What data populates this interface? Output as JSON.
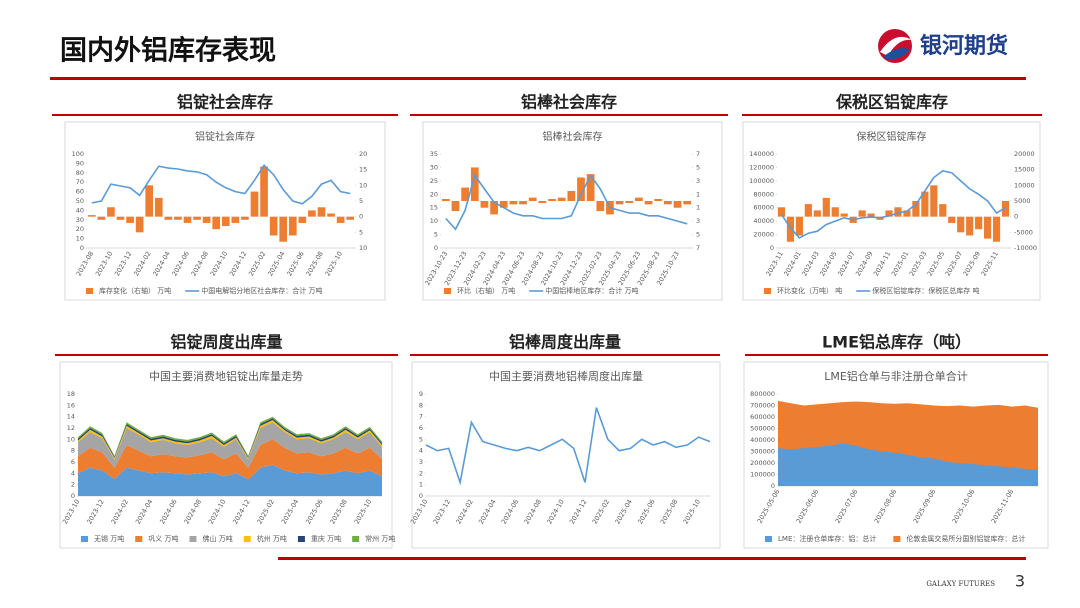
{
  "header": {
    "title": "国内外铝库存表现",
    "logo": "银河期货"
  },
  "footer": {
    "brand": "GALAXY FUTURES",
    "page": "3"
  },
  "chart_data": [
    {
      "type": "combo",
      "heading": "铝锭社会库存",
      "title": "铝锭社会库存",
      "categories": [
        "2023-08",
        null,
        "2023-10",
        null,
        "2023-12",
        null,
        "2024-02",
        null,
        "2024-04",
        null,
        "2024-06",
        null,
        "2024-08",
        null,
        "2024-10",
        null,
        "2024-12",
        null,
        "2025-02",
        null,
        "2025-04",
        null,
        "2025-06",
        null,
        "2025-08",
        null,
        "2025-10",
        null
      ],
      "series": [
        {
          "name": "库存变化（右轴） 万吨",
          "type": "bar",
          "axis": "y2",
          "color": "#ed7d31",
          "values": [
            0.5,
            -1,
            3,
            -1,
            -2,
            -5,
            10,
            6,
            -1,
            -1,
            -2,
            -1,
            -2,
            -4,
            -3,
            -2,
            -1,
            8,
            16,
            -6,
            -8,
            -6,
            -2,
            2,
            3,
            1,
            -2,
            -1
          ]
        },
        {
          "name": "中国电解铝分地区社会库存：合计 万吨",
          "type": "line",
          "color": "#5b9bd5",
          "values": [
            48,
            50,
            68,
            66,
            64,
            56,
            72,
            87,
            85,
            84,
            82,
            81,
            78,
            70,
            64,
            60,
            58,
            72,
            88,
            78,
            62,
            50,
            47,
            55,
            68,
            72,
            60,
            58
          ]
        }
      ],
      "ylim": [
        0,
        100
      ],
      "yticks": [
        0,
        10,
        20,
        30,
        40,
        50,
        60,
        70,
        80,
        90,
        100
      ],
      "y2lim": [
        -10,
        20
      ],
      "y2ticks": [
        {
          "value": -10,
          "label": "10"
        },
        {
          "value": -5,
          "label": "5"
        },
        0,
        5,
        10,
        15,
        20
      ]
    },
    {
      "type": "combo",
      "heading": "铝棒社会库存",
      "title": "铝棒社会库存",
      "categories": [
        "2023-10-23",
        null,
        "2023-12-23",
        null,
        "2024-02-23",
        null,
        "2024-04-23",
        null,
        "2024-06-23",
        null,
        "2024-08-23",
        null,
        "2024-10-23",
        null,
        "2024-12-23",
        null,
        "2025-02-23",
        null,
        "2025-04-23",
        null,
        "2025-06-23",
        null,
        "2025-08-23",
        null,
        "2025-10-23",
        null
      ],
      "series": [
        {
          "name": "环比（右轴） 万吨",
          "type": "bar",
          "axis": "y2",
          "color": "#ed7d31",
          "values": [
            0.3,
            -1.5,
            2,
            5,
            -1,
            -2,
            -1,
            -0.5,
            -0.5,
            0.5,
            -0.3,
            0.3,
            0.5,
            1.5,
            3.5,
            4,
            -1.5,
            -2,
            -0.5,
            -0.3,
            0.5,
            -0.5,
            0.3,
            -0.5,
            -1,
            -0.5
          ]
        },
        {
          "name": "中国铝棒地区库存：合计 万吨",
          "type": "line",
          "color": "#5b9bd5",
          "values": [
            11,
            7,
            14,
            27,
            22,
            17,
            15,
            13,
            12,
            12,
            11,
            11,
            11,
            12,
            20,
            27,
            22,
            15,
            14,
            13,
            13,
            12,
            12,
            11,
            10,
            9
          ]
        }
      ],
      "ylim": [
        0,
        35
      ],
      "yticks": [
        0,
        5,
        10,
        15,
        20,
        25,
        30,
        35
      ],
      "y2lim": [
        -7,
        7
      ],
      "y2ticks": [
        {
          "value": -7,
          "label": "7"
        },
        {
          "value": -5,
          "label": "5"
        },
        {
          "value": -3,
          "label": "3"
        },
        {
          "value": -1,
          "label": "1"
        },
        1,
        3,
        5,
        7
      ]
    },
    {
      "type": "combo",
      "heading": "保税区铝锭库存",
      "title": "保税区铝锭库存",
      "categories": [
        "2023-11",
        null,
        "2024-01",
        null,
        "2024-03",
        null,
        "2024-05",
        null,
        "2024-07",
        null,
        "2024-09",
        null,
        "2024-11",
        null,
        "2025-01",
        null,
        "2025-03",
        null,
        "2025-05",
        null,
        "2025-07",
        null,
        "2025-09",
        null,
        "2025-11",
        null
      ],
      "series": [
        {
          "name": "环比变化（万吨） 吨",
          "type": "bar",
          "axis": "y2",
          "color": "#ed7d31",
          "values": [
            3000,
            -8000,
            -6000,
            4000,
            2000,
            6000,
            3000,
            1000,
            -2000,
            2000,
            1000,
            -1000,
            2000,
            3000,
            2000,
            5000,
            8000,
            10000,
            4000,
            -2000,
            -5000,
            -6000,
            -4000,
            -7000,
            -8000,
            5000
          ]
        },
        {
          "name": "保税区铝锭库存：保税区总库存 吨",
          "type": "line",
          "color": "#5b9bd5",
          "values": [
            50000,
            30000,
            15000,
            22000,
            25000,
            35000,
            40000,
            45000,
            42000,
            45000,
            46000,
            45000,
            48000,
            52000,
            55000,
            65000,
            85000,
            105000,
            115000,
            112000,
            100000,
            88000,
            80000,
            70000,
            52000,
            60000
          ]
        }
      ],
      "ylim": [
        0,
        140000
      ],
      "yticks": [
        0,
        20000,
        40000,
        60000,
        80000,
        100000,
        120000,
        140000
      ],
      "y2lim": [
        -10000,
        20000
      ],
      "y2ticks": [
        -10000,
        -5000,
        0,
        5000,
        10000,
        15000,
        20000
      ]
    },
    {
      "type": "area",
      "stacked": true,
      "heading": "铝锭周度出库量",
      "title": "中国主要消费地铝锭出库量走势",
      "categories": [
        "2023-10",
        null,
        "2023-12",
        null,
        "2024-02",
        null,
        "2024-04",
        null,
        "2024-06",
        null,
        "2024-08",
        null,
        "2024-10",
        null,
        "2024-12",
        null,
        "2025-02",
        null,
        "2025-04",
        null,
        "2025-06",
        null,
        "2025-08",
        null,
        "2025-10",
        null
      ],
      "series": [
        {
          "name": "无锡 万吨",
          "color": "#5b9bd5",
          "values": [
            4,
            5,
            4.5,
            3,
            5,
            4.5,
            4,
            4.2,
            4,
            3.8,
            4,
            4.2,
            3.5,
            4,
            3,
            5,
            5.5,
            4.5,
            4,
            4.2,
            3.8,
            4,
            4.5,
            4,
            4.5,
            3.5
          ]
        },
        {
          "name": "巩义 万吨",
          "color": "#ed7d31",
          "values": [
            3,
            3.5,
            3.2,
            2,
            4,
            3.5,
            3,
            3.2,
            3,
            3,
            3.2,
            3.5,
            3,
            3.5,
            2,
            4,
            4.5,
            4,
            3.5,
            3.5,
            3.2,
            3.5,
            4,
            3.5,
            4,
            3
          ]
        },
        {
          "name": "佛山 万吨",
          "color": "#a5a5a5",
          "values": [
            2.5,
            2.8,
            2.5,
            1.5,
            3,
            2.8,
            2.5,
            2.5,
            2.3,
            2.2,
            2.3,
            2.5,
            2.2,
            2.5,
            1.5,
            3,
            3,
            2.8,
            2.5,
            2.5,
            2.3,
            2.5,
            2.8,
            2.5,
            2.8,
            2.2
          ]
        },
        {
          "name": "杭州 万吨",
          "color": "#ffc000",
          "values": [
            0.3,
            0.4,
            0.3,
            0.2,
            0.4,
            0.3,
            0.3,
            0.3,
            0.3,
            0.3,
            0.3,
            0.4,
            0.3,
            0.3,
            0.2,
            0.4,
            0.4,
            0.3,
            0.3,
            0.3,
            0.3,
            0.3,
            0.4,
            0.3,
            0.3,
            0.3
          ]
        },
        {
          "name": "重庆 万吨",
          "color": "#264478",
          "values": [
            0.3,
            0.3,
            0.3,
            0.2,
            0.3,
            0.3,
            0.3,
            0.3,
            0.3,
            0.3,
            0.3,
            0.3,
            0.3,
            0.3,
            0.2,
            0.3,
            0.3,
            0.3,
            0.3,
            0.3,
            0.3,
            0.3,
            0.3,
            0.3,
            0.3,
            0.3
          ]
        },
        {
          "name": "常州 万吨",
          "color": "#70ad47",
          "values": [
            0.3,
            0.3,
            0.3,
            0.2,
            0.3,
            0.3,
            0.3,
            0.3,
            0.3,
            0.3,
            0.3,
            0.3,
            0.3,
            0.3,
            0.2,
            0.3,
            0.3,
            0.3,
            0.3,
            0.3,
            0.3,
            0.3,
            0.3,
            0.3,
            0.3,
            0.3
          ]
        }
      ],
      "ylim": [
        0,
        18
      ],
      "yticks": [
        0,
        2,
        4,
        6,
        8,
        10,
        12,
        14,
        16,
        18
      ]
    },
    {
      "type": "line",
      "heading": "铝棒周度出库量",
      "title": "中国主要消费地铝棒周度出库量",
      "categories": [
        "2023-10",
        null,
        "2023-12",
        null,
        "2024-02",
        null,
        "2024-04",
        null,
        "2024-06",
        null,
        "2024-08",
        null,
        "2024-10",
        null,
        "2024-12",
        null,
        "2025-02",
        null,
        "2025-04",
        null,
        "2025-06",
        null,
        "2025-08",
        null,
        "2025-10",
        null
      ],
      "series": [
        {
          "color": "#5b9bd5",
          "values": [
            4.5,
            4,
            4.2,
            1.2,
            6.5,
            4.8,
            4.5,
            4.2,
            4,
            4.3,
            4,
            4.5,
            5,
            4.2,
            1.2,
            7.8,
            5,
            4,
            4.2,
            5,
            4.5,
            4.8,
            4.3,
            4.5,
            5.2,
            4.8
          ]
        }
      ],
      "ylim": [
        0,
        9
      ],
      "yticks": [
        0,
        1,
        2,
        3,
        4,
        5,
        6,
        7,
        8,
        9
      ]
    },
    {
      "type": "area",
      "stacked": false,
      "heading": "LME铝总库存（吨）",
      "title": "LME铝仓单与非注册仓单合计",
      "categories": [
        "2025-05-06",
        null,
        null,
        "2025-06-06",
        null,
        null,
        "2025-07-06",
        null,
        null,
        "2025-08-06",
        null,
        null,
        "2025-09-06",
        null,
        null,
        "2025-10-06",
        null,
        null,
        "2025-11-06",
        null,
        null
      ],
      "series": [
        {
          "name": "LME：注册仓单库存：铝：总计",
          "color": "#5b9bd5",
          "values": [
            330000,
            320000,
            330000,
            340000,
            350000,
            370000,
            350000,
            320000,
            300000,
            290000,
            270000,
            250000,
            240000,
            210000,
            200000,
            190000,
            180000,
            170000,
            160000,
            150000,
            140000
          ]
        },
        {
          "name": "伦敦金属交易所分国别铝锭库存：总计",
          "color": "#ed7d31",
          "values": [
            740000,
            720000,
            700000,
            710000,
            720000,
            730000,
            735000,
            730000,
            720000,
            715000,
            720000,
            710000,
            700000,
            695000,
            700000,
            690000,
            700000,
            705000,
            690000,
            700000,
            680000
          ]
        }
      ],
      "ylim": [
        0,
        800000
      ],
      "yticks": [
        0,
        100000,
        200000,
        300000,
        400000,
        500000,
        600000,
        700000,
        800000
      ]
    }
  ]
}
